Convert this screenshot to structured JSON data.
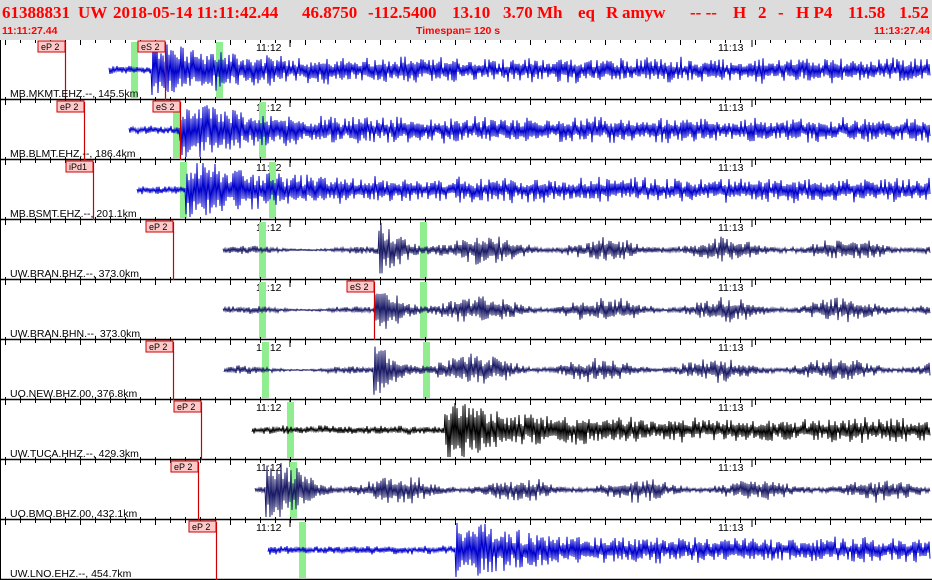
{
  "header": {
    "event_id": "61388831",
    "network": "UW",
    "origin_time": "2018-05-14 11:11:42.44",
    "latitude": "46.8750",
    "longitude": "-112.5400",
    "depth": "13.10",
    "magnitude": "3.70 Mh",
    "event_type": "eq",
    "review": "R",
    "analyst": "amyw",
    "flags": "-- --",
    "quality": "H",
    "gap_code": "2",
    "dash": "-",
    "phase_code": "H P4",
    "rms_a": "11.58",
    "rms_b": "1.52",
    "window_start": "11:11:27.44",
    "timespan": "Timespan= 120 s",
    "window_end": "11:13:27.44"
  },
  "colors": {
    "header_background": "#dcdcdc",
    "header_text": "#ff0000",
    "pick_line": "#cc0000",
    "pick_label_fill": "#ffc8c8",
    "green_marker": "#90ee90",
    "trace_blue": "#0000cc",
    "trace_navy": "#1a1a66",
    "trace_black": "#000000"
  },
  "minute_labels": [
    "11:12",
    "11:13"
  ],
  "traces": [
    {
      "label": "MB.MKMT.EHZ.--, 145.5km",
      "color": "blue",
      "picks": [
        {
          "phase": "eP 2",
          "time": 8.5
        },
        {
          "phase": "eS 2",
          "time": 21.7
        }
      ],
      "markers": [
        17.6,
        28.8
      ],
      "signal_start": 14.4,
      "arrival": 20.0
    },
    {
      "label": "MB.BLMT.EHZ.--, 186.4km",
      "color": "blue",
      "picks": [
        {
          "phase": "eP 2",
          "time": 11.1
        },
        {
          "phase": "eS 2",
          "time": 23.7
        }
      ],
      "markers": [
        23.1,
        34.5
      ],
      "signal_start": 17.0,
      "arrival": 23.7
    },
    {
      "label": "MB.BSMT.EHZ.--, 201.1km",
      "color": "blue",
      "picks": [
        {
          "phase": "iPd1",
          "time": 12.2
        }
      ],
      "markers": [
        24.1,
        35.8
      ],
      "signal_start": 18.0,
      "arrival": 24.5
    },
    {
      "label": "UW.BRAN.BHZ.--, 373.0km",
      "color": "navy",
      "picks": [
        {
          "phase": "eP 2",
          "time": 22.8
        }
      ],
      "markers": [
        34.5,
        55.6
      ],
      "signal_start": 29.3,
      "arrival": 49.9
    },
    {
      "label": "UW.BRAN.BHN.--, 373.0km",
      "color": "navy",
      "picks": [
        {
          "phase": "eS 2",
          "time": 49.2
        }
      ],
      "markers": [
        34.5,
        55.6
      ],
      "signal_start": 29.3,
      "arrival": 49.4
    },
    {
      "label": "UO.NEW.BHZ.00, 376.8km",
      "color": "navy",
      "picks": [
        {
          "phase": "eP 2",
          "time": 22.8
        }
      ],
      "markers": [
        34.9,
        56.0
      ],
      "signal_start": 29.5,
      "arrival": 49.2
    },
    {
      "label": "UW.TUCA.HHZ.--, 429.3km",
      "color": "black",
      "picks": [
        {
          "phase": "eP 2",
          "time": 26.5
        }
      ],
      "markers": [
        38.2
      ],
      "signal_start": 33.2,
      "arrival": 58.5
    },
    {
      "label": "UO.BMO.BHZ.00, 432.1km",
      "color": "navy",
      "picks": [
        {
          "phase": "eP 2",
          "time": 26.1
        }
      ],
      "markers": [
        38.5
      ],
      "signal_start": 33.5,
      "arrival": 35.0
    },
    {
      "label": "UW.LNO.EHZ.--, 454.7km",
      "color": "blue",
      "picks": [
        {
          "phase": "eP 2",
          "time": 28.4
        }
      ],
      "markers": [
        39.8
      ],
      "signal_start": 35.3,
      "arrival": 60.0
    }
  ]
}
